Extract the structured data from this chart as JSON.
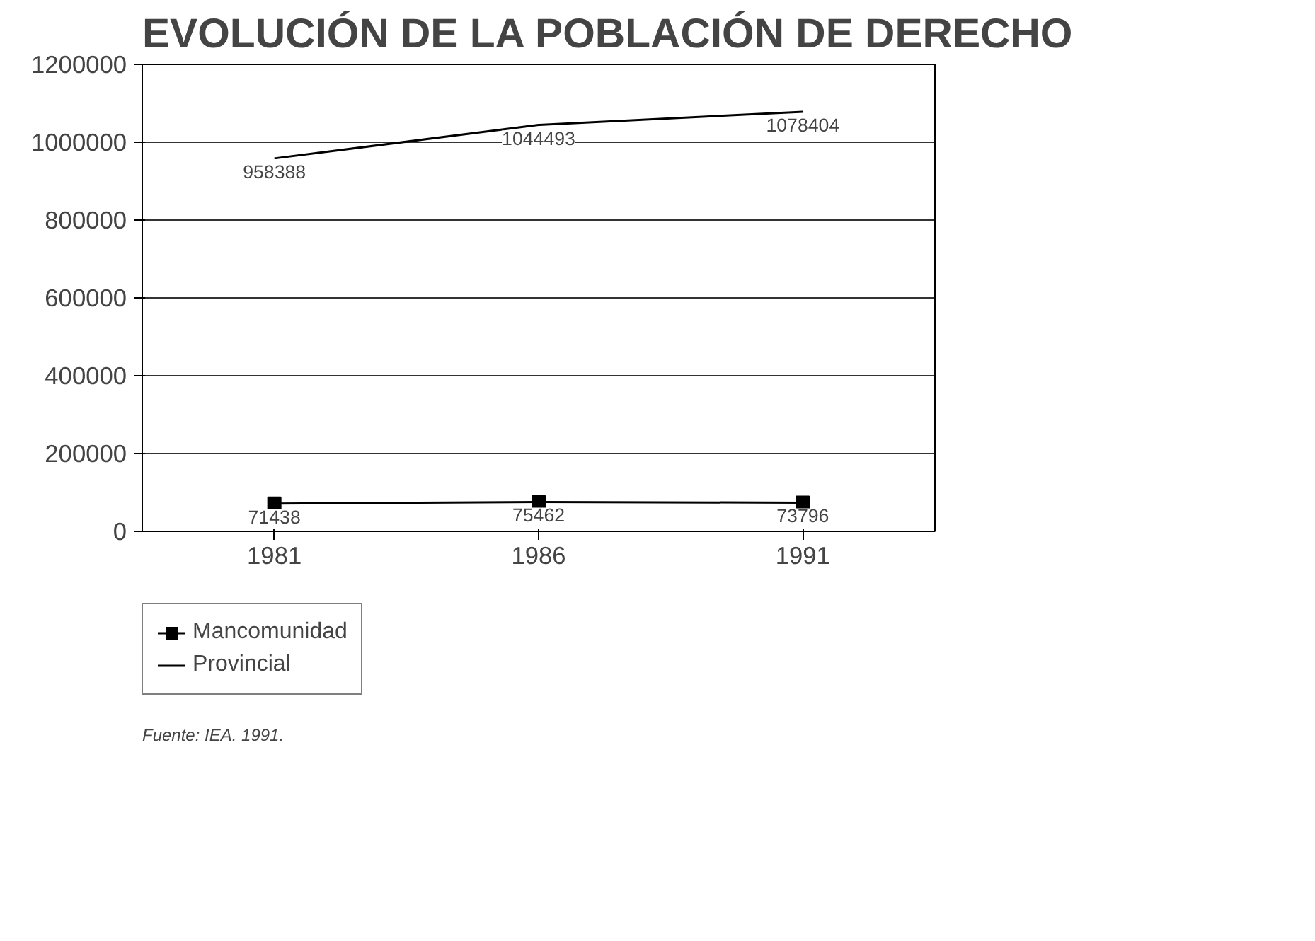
{
  "chart_data": {
    "type": "line",
    "title": "EVOLUCIÓN DE LA POBLACIÓN DE DERECHO",
    "categories": [
      "1981",
      "1986",
      "1991"
    ],
    "series": [
      {
        "name": "Mancomunidad",
        "color": "#000000",
        "values": [
          71438,
          75462,
          73796
        ],
        "marker": "square"
      },
      {
        "name": "Provincial",
        "color": "#000000",
        "values": [
          958388,
          1044493,
          1078404
        ],
        "marker": "none"
      }
    ],
    "ylim": [
      0,
      1200000
    ],
    "yticks": [
      0,
      200000,
      400000,
      600000,
      800000,
      1000000,
      1200000
    ],
    "grid": "y",
    "legend": "bottom left",
    "data_labels": true,
    "annotations": [
      "Fuente: IEA. 1991."
    ]
  }
}
